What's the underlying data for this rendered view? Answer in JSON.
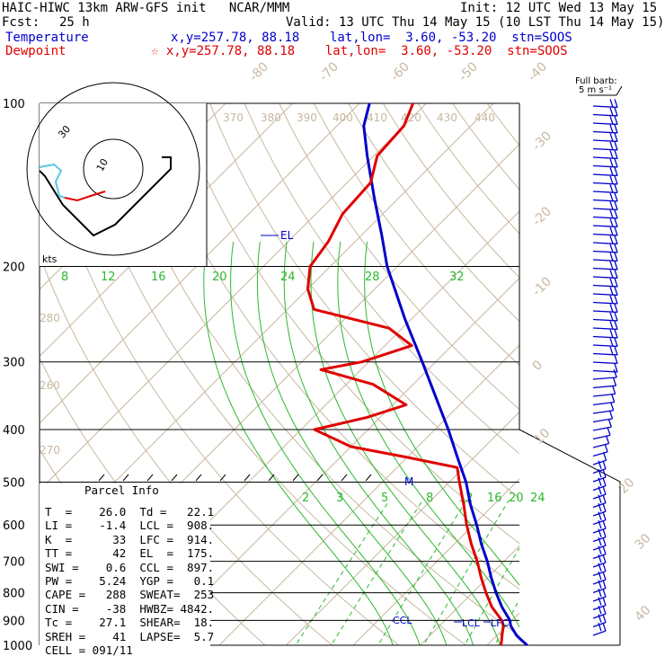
{
  "header": {
    "title": "HAIC-HIWC 13km ARW-GFS init   NCAR/MMM",
    "init": "Init: 12 UTC Wed 13 May 15",
    "fcst_label": "Fcst:",
    "fcst_value": "25 h",
    "valid": "Valid: 13 UTC Thu 14 May 15 (10 LST Thu 14 May 15)",
    "temperature_label": "Temperature",
    "temperature_readout": "x,y=257.78, 88.18    lat,lon=  3.60, -53.20  stn=SOOS",
    "dewpoint_label": "Dewpoint",
    "dewpoint_readout": "☆ x,y=257.78, 88.18    lat,lon=  3.60, -53.20  stn=SOOS"
  },
  "chart_data": {
    "type": "skew-T log-p sounding",
    "pressure_labels": [
      "100",
      "200",
      "300",
      "400",
      "500",
      "600",
      "700",
      "800",
      "900",
      "1000"
    ],
    "temperature_isotherm_labels": [
      "-80",
      "-70",
      "-60",
      "-50",
      "-40",
      "-30",
      "-20",
      "-10",
      "0",
      "10",
      "20",
      "30",
      "40"
    ],
    "theta_labels": [
      "370",
      "380",
      "390",
      "400",
      "410",
      "420",
      "430",
      "440",
      "280",
      "260",
      "270"
    ],
    "mixing_ratio_labels_upper": [
      "8",
      "12",
      "16",
      "20",
      "24",
      "28",
      "32"
    ],
    "mixing_ratio_labels_lower": [
      "2",
      "3",
      "5",
      "8",
      "12",
      "16",
      "20",
      "24"
    ],
    "level_labels": {
      "el": "EL",
      "ccl": "CCL",
      "lcl": "LCL",
      "lfc": "LFC",
      "m": "M"
    },
    "series": [
      {
        "name": "Temperature",
        "color": "#0000cc",
        "points": [
          [
            1000,
            26.0
          ],
          [
            980,
            24.5
          ],
          [
            960,
            23.0
          ],
          [
            940,
            21.8
          ],
          [
            920,
            20.6
          ],
          [
            900,
            19.7
          ],
          [
            850,
            16.5
          ],
          [
            800,
            13.5
          ],
          [
            750,
            10.5
          ],
          [
            700,
            7.5
          ],
          [
            650,
            4.0
          ],
          [
            600,
            0.5
          ],
          [
            550,
            -3.5
          ],
          [
            500,
            -7.5
          ],
          [
            450,
            -12.5
          ],
          [
            400,
            -18.0
          ],
          [
            350,
            -24.5
          ],
          [
            300,
            -32.0
          ],
          [
            250,
            -41.0
          ],
          [
            200,
            -51.5
          ],
          [
            175,
            -57.0
          ],
          [
            150,
            -63.5
          ],
          [
            125,
            -71.0
          ],
          [
            110,
            -76.0
          ],
          [
            100,
            -78.5
          ]
        ]
      },
      {
        "name": "Dewpoint",
        "color": "#e00000",
        "points": [
          [
            1000,
            22.1
          ],
          [
            960,
            20.8
          ],
          [
            920,
            19.5
          ],
          [
            900,
            18.5
          ],
          [
            850,
            15.0
          ],
          [
            800,
            12.0
          ],
          [
            750,
            9.0
          ],
          [
            700,
            6.0
          ],
          [
            650,
            2.5
          ],
          [
            600,
            -1.0
          ],
          [
            550,
            -4.5
          ],
          [
            500,
            -8.5
          ],
          [
            470,
            -11.0
          ],
          [
            450,
            -20.0
          ],
          [
            430,
            -30.0
          ],
          [
            400,
            -38.0
          ],
          [
            380,
            -32.0
          ],
          [
            360,
            -28.0
          ],
          [
            330,
            -36.0
          ],
          [
            310,
            -46.0
          ],
          [
            300,
            -41.0
          ],
          [
            280,
            -36.0
          ],
          [
            260,
            -42.0
          ],
          [
            240,
            -56.0
          ],
          [
            220,
            -60.0
          ],
          [
            200,
            -63.0
          ],
          [
            180,
            -64.0
          ],
          [
            160,
            -66.0
          ],
          [
            140,
            -66.5
          ],
          [
            125,
            -69.5
          ],
          [
            110,
            -70.0
          ],
          [
            100,
            -72.0
          ]
        ]
      }
    ],
    "hodograph": {
      "rings_label": "10",
      "ring_label_30": "30",
      "units": "kts"
    },
    "wind_barb_legend": {
      "title": "Full barb:",
      "units": "5 m s⁻¹"
    }
  },
  "parcel": {
    "title": "Parcel Info",
    "rows": [
      "T  =    26.0  Td =   22.1",
      "LI =    -1.4  LCL =  908.",
      "K  =      33  LFC =  914.",
      "TT =      42  EL  =  175.",
      "SWI =    0.6  CCL =  897.",
      "PW =    5.24  YGP =   0.1",
      "CAPE =   288  SWEAT=  253",
      "CIN =    -38  HWBZ= 4842.",
      "Tc =    27.1  SHEAR=  18.",
      "SREH =    41  LAPSE=  5.7",
      "CELL = 091/11"
    ]
  },
  "colors": {
    "temperature": "#0000cc",
    "dewpoint": "#e00000",
    "isotherm": "#c8b8a0",
    "mixing_ratio": "#2db82d",
    "moist_adiabat": "#2db82d"
  }
}
